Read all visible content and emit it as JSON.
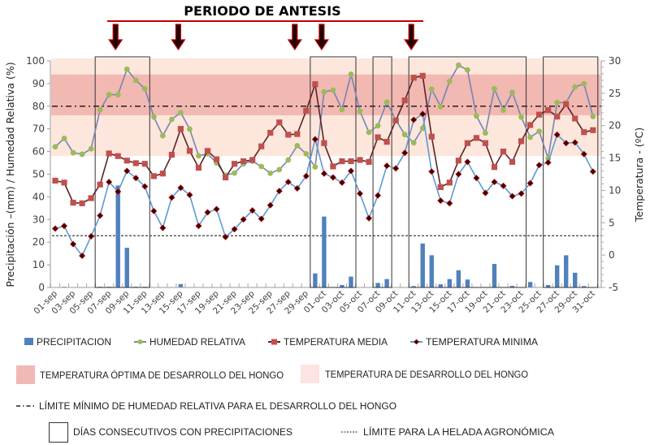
{
  "chart_data": {
    "type": "bar+line",
    "title": "PERIODO DE ANTESIS",
    "ylabel_left": "Precipitación –(mm) / Humedad Relativa (%)",
    "ylabel_right": "Temperatura - (ºC)",
    "ylim_left": [
      0,
      100
    ],
    "ylim_right": [
      -5,
      30
    ],
    "yticks_left": [
      "0",
      "10",
      "20",
      "30",
      "40",
      "50",
      "60",
      "70",
      "80",
      "90",
      "100"
    ],
    "yticks_right": [
      "-5",
      "0",
      "5",
      "10",
      "15",
      "20",
      "25",
      "30"
    ],
    "xtick_labels": [
      "01-sep",
      "03-sep",
      "05-sep",
      "07-sep",
      "09-sep",
      "11-sep",
      "13-sep",
      "15-sep",
      "17-sep",
      "19-sep",
      "21-sep",
      "23-sep",
      "25-sep",
      "27-sep",
      "29-sep",
      "01-oct",
      "03-oct",
      "05-oct",
      "07-oct",
      "09-oct",
      "11-oct",
      "13-oct",
      "15-oct",
      "17-oct",
      "19-oct",
      "21-oct",
      "23-oct",
      "25-oct",
      "27-oct",
      "29-oct",
      "31-oct"
    ],
    "days": 61,
    "series": [
      {
        "name": "PRECIPITACION",
        "axis": "left",
        "kind": "bar",
        "color": "#4f81bd",
        "values": [
          0,
          0.3,
          0,
          0,
          0,
          0.3,
          0.3,
          45,
          17.5,
          0.3,
          0.3,
          0,
          0,
          0,
          1.5,
          0,
          0,
          0,
          0,
          0,
          0,
          0,
          0,
          0,
          0,
          0,
          0,
          0,
          0,
          6.2,
          31.3,
          0.2,
          1.1,
          4.8,
          0,
          0,
          2.0,
          3.7,
          0,
          0,
          0.6,
          19.4,
          14.2,
          1.4,
          3.7,
          7.6,
          3.5,
          0.2,
          0.2,
          10.4,
          0.2,
          0.7,
          0,
          2.4,
          0,
          1.1,
          9.8,
          14.2,
          6.5,
          0.6,
          0
        ]
      },
      {
        "name": "HUMEDAD RELATIVA",
        "axis": "left",
        "kind": "line",
        "color": "#7486b4",
        "marker_color": "#9bbb59",
        "values": [
          62.1,
          65.8,
          59.5,
          58.8,
          61.2,
          78.4,
          85.1,
          85.1,
          96.3,
          91.4,
          87.7,
          75.3,
          67.0,
          74.2,
          77.2,
          69.9,
          58.1,
          59.0,
          55.0,
          49.5,
          50.5,
          54.6,
          55.8,
          53.4,
          50.4,
          52.0,
          56.3,
          62.6,
          59.0,
          53.2,
          86.3,
          87.1,
          78.5,
          94.1,
          77.8,
          68.5,
          71.4,
          81.8,
          73.9,
          67.5,
          63.9,
          70.3,
          87.5,
          79.8,
          91.0,
          98.1,
          96.0,
          75.7,
          68.2,
          87.7,
          78.3,
          86.1,
          75.2,
          66.3,
          68.9,
          57.0,
          81.6,
          81.6,
          88.5,
          89.9,
          75.5
        ]
      },
      {
        "name": "TEMPERATURA MEDIA",
        "axis": "right",
        "kind": "line",
        "color": "#5a2424",
        "marker_color": "#c0504d",
        "values": [
          11.5,
          11.2,
          8.1,
          8.0,
          8.8,
          10.9,
          15.7,
          15.3,
          14.6,
          14.2,
          14.1,
          12.2,
          12.6,
          15.5,
          19.5,
          16.1,
          13.5,
          16.1,
          14.8,
          12.0,
          14.1,
          14.5,
          14.7,
          16.8,
          18.9,
          20.5,
          18.6,
          18.7,
          22.3,
          26.4,
          17.3,
          13.7,
          14.5,
          14.5,
          14.7,
          14.4,
          18.2,
          17.5,
          20.8,
          23.9,
          27.4,
          27.7,
          18.3,
          10.5,
          11.2,
          14.6,
          17.3,
          18.1,
          17.3,
          13.6,
          16.0,
          14.4,
          17.6,
          20.1,
          21.7,
          22.4,
          21.4,
          23.3,
          21.1,
          19.0,
          19.3
        ]
      },
      {
        "name": "TEMPERATURA MINIMA",
        "axis": "right",
        "kind": "line",
        "color": "#5b9bd5",
        "marker_color": "#3a0000",
        "values": [
          4.1,
          4.5,
          1.7,
          -0.1,
          2.9,
          6.1,
          11.3,
          9.8,
          13.0,
          11.9,
          10.6,
          6.8,
          4.2,
          8.9,
          10.4,
          9.3,
          4.5,
          6.6,
          7.1,
          2.8,
          4.0,
          5.5,
          6.9,
          5.6,
          7.7,
          9.9,
          11.3,
          10.3,
          12.2,
          17.9,
          12.6,
          12.0,
          11.2,
          13.0,
          9.5,
          5.7,
          9.2,
          13.8,
          13.4,
          15.8,
          20.9,
          21.8,
          12.9,
          8.4,
          8.0,
          12.5,
          14.4,
          11.9,
          9.6,
          11.3,
          10.7,
          9.1,
          9.5,
          11.1,
          13.9,
          14.3,
          18.6,
          17.3,
          17.4,
          15.6,
          12.9
        ]
      }
    ],
    "bands": [
      {
        "name": "TEMPERATURA DE DESARROLLO DEL HONGO",
        "axis": "right",
        "range": [
          15.3,
          30.4
        ],
        "color": "#fde6dc"
      },
      {
        "name": "TEMPERATURA ÓPTIMA DE DESARROLLO DEL HONGO",
        "axis": "right",
        "range": [
          21.6,
          27.9
        ],
        "color": "#f2b8b2"
      }
    ],
    "reference_lines": [
      {
        "name": "LÍMITE MÍNIMO DE HUMEDAD RELATIVA PARA EL DESARROLLO DEL HONGO",
        "axis": "left",
        "value": 80,
        "style": "dash-dot"
      },
      {
        "name": "LÍMITE PARA LA HELADA AGRONÓMICA",
        "axis": "right",
        "value": 3,
        "style": "dashed"
      }
    ],
    "rain_boxes": [
      {
        "from_day": 6,
        "to_day": 11
      },
      {
        "from_day": 30,
        "to_day": 34
      },
      {
        "from_day": 37,
        "to_day": 38
      },
      {
        "from_day": 41,
        "to_day": 53
      },
      {
        "from_day": 56,
        "to_day": 61
      }
    ],
    "antesis_arrows_days": [
      8,
      15,
      28,
      31,
      41
    ],
    "legend": {
      "series": [
        "PRECIPITACION",
        "HUMEDAD RELATIVA",
        "TEMPERATURA MEDIA",
        "TEMPERATURA MINIMA"
      ],
      "band_optimal": "TEMPERATURA ÓPTIMA DE DESARROLLO DEL HONGO",
      "band_range": "TEMPERATURA DE DESARROLLO DEL HONGO",
      "humidity_limit": "LÍMITE MÍNIMO DE HUMEDAD RELATIVA PARA EL DESARROLLO DEL HONGO",
      "frost_limit": "LÍMITE PARA LA HELADA AGRONÓMICA",
      "rain_box": "DÍAS CONSECUTIVOS CON PRECIPITACIONES",
      "placement": "bottom"
    },
    "grid": false
  }
}
